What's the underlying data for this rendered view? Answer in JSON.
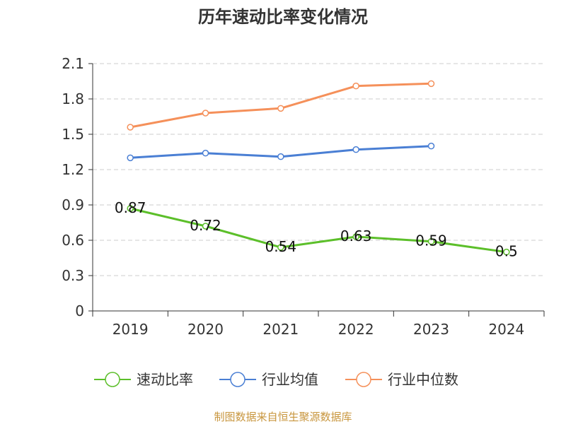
{
  "chart_data": {
    "type": "line",
    "title": "历年速动比率变化情况",
    "categories": [
      "2019",
      "2020",
      "2021",
      "2022",
      "2023",
      "2024"
    ],
    "yticks": [
      "0",
      "0.3",
      "0.6",
      "0.9",
      "1.2",
      "1.5",
      "1.8",
      "2.1"
    ],
    "ylim": [
      0,
      2.1
    ],
    "grid": true,
    "legend_position": "bottom",
    "series": [
      {
        "name": "速动比率",
        "color": "#5cbf2a",
        "values": [
          0.87,
          0.72,
          0.54,
          0.63,
          0.59,
          0.5
        ],
        "labels": [
          "0.87",
          "0.72",
          "0.54",
          "0.63",
          "0.59",
          "0.5"
        ]
      },
      {
        "name": "行业均值",
        "color": "#4a7fd4",
        "values": [
          1.3,
          1.34,
          1.31,
          1.37,
          1.4,
          null
        ]
      },
      {
        "name": "行业中位数",
        "color": "#f5905a",
        "values": [
          1.56,
          1.68,
          1.72,
          1.91,
          1.93,
          null
        ]
      }
    ]
  },
  "source": "制图数据来自恒生聚源数据库"
}
